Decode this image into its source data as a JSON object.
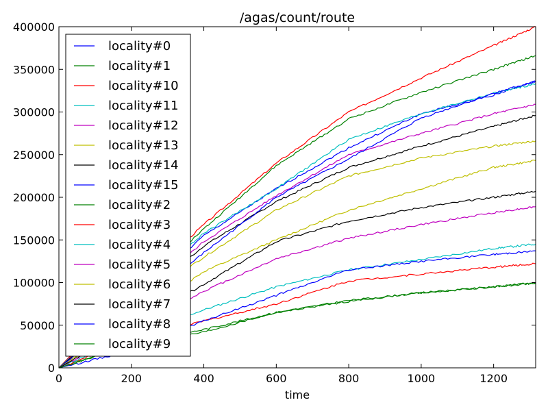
{
  "chart_data": {
    "type": "line",
    "title": "/agas/count/route",
    "xlabel": "time",
    "ylabel": "",
    "xlim": [
      0,
      1316
    ],
    "ylim": [
      0,
      400000
    ],
    "xticks": [
      0,
      200,
      400,
      600,
      800,
      1000,
      1200
    ],
    "yticks": [
      0,
      50000,
      100000,
      150000,
      200000,
      250000,
      300000,
      350000,
      400000
    ],
    "grid": false,
    "legend_position": "upper-left",
    "series": [
      {
        "name": "locality#0",
        "color": "#0000ff",
        "x": [
          0,
          200,
          400,
          600,
          800,
          1000,
          1200,
          1316
        ],
        "y": [
          0,
          78000,
          155000,
          210000,
          258000,
          298000,
          320000,
          336000
        ]
      },
      {
        "name": "locality#1",
        "color": "#008000",
        "x": [
          0,
          200,
          400,
          600,
          800,
          1000,
          1200,
          1316
        ],
        "y": [
          0,
          85000,
          163000,
          237000,
          292000,
          323000,
          350000,
          366000
        ]
      },
      {
        "name": "locality#10",
        "color": "#ff0000",
        "x": [
          0,
          200,
          400,
          600,
          800,
          1000,
          1200,
          1316
        ],
        "y": [
          0,
          90000,
          168000,
          240000,
          300000,
          340000,
          378000,
          400000
        ]
      },
      {
        "name": "locality#11",
        "color": "#00bfbf",
        "x": [
          0,
          200,
          400,
          600,
          800,
          1000,
          1200,
          1316
        ],
        "y": [
          0,
          82000,
          158000,
          210000,
          268000,
          298000,
          322000,
          333000
        ]
      },
      {
        "name": "locality#12",
        "color": "#bf00bf",
        "x": [
          0,
          200,
          400,
          600,
          800,
          1000,
          1200,
          1316
        ],
        "y": [
          0,
          75000,
          148000,
          202000,
          250000,
          275000,
          298000,
          309000
        ]
      },
      {
        "name": "locality#13",
        "color": "#bfbf00",
        "x": [
          0,
          200,
          400,
          600,
          800,
          1000,
          1200,
          1316
        ],
        "y": [
          0,
          70000,
          130000,
          185000,
          225000,
          246000,
          260000,
          266000
        ]
      },
      {
        "name": "locality#14",
        "color": "#000000",
        "x": [
          0,
          200,
          400,
          600,
          800,
          1000,
          1200,
          1316
        ],
        "y": [
          0,
          72000,
          143000,
          195000,
          235000,
          260000,
          283000,
          296000
        ]
      },
      {
        "name": "locality#15",
        "color": "#0000ff",
        "x": [
          0,
          200,
          400,
          600,
          800,
          1000,
          1200,
          1316
        ],
        "y": [
          0,
          65000,
          135000,
          200000,
          245000,
          293000,
          322000,
          336000
        ]
      },
      {
        "name": "locality#2",
        "color": "#008000",
        "x": [
          0,
          200,
          400,
          600,
          800,
          1000,
          1200,
          1316
        ],
        "y": [
          0,
          28000,
          45000,
          65000,
          79000,
          88000,
          95000,
          99000
        ]
      },
      {
        "name": "locality#3",
        "color": "#ff0000",
        "x": [
          0,
          200,
          400,
          600,
          800,
          1000,
          1200,
          1316
        ],
        "y": [
          0,
          32000,
          55000,
          75000,
          102000,
          110000,
          118000,
          122000
        ]
      },
      {
        "name": "locality#4",
        "color": "#00bfbf",
        "x": [
          0,
          200,
          400,
          600,
          800,
          1000,
          1200,
          1316
        ],
        "y": [
          0,
          38000,
          68000,
          95000,
          115000,
          127000,
          140000,
          145000
        ]
      },
      {
        "name": "locality#5",
        "color": "#bf00bf",
        "x": [
          0,
          200,
          400,
          600,
          800,
          1000,
          1200,
          1316
        ],
        "y": [
          0,
          45000,
          90000,
          128000,
          152000,
          168000,
          182000,
          189000
        ]
      },
      {
        "name": "locality#6",
        "color": "#bfbf00",
        "x": [
          0,
          200,
          400,
          600,
          800,
          1000,
          1200,
          1316
        ],
        "y": [
          0,
          55000,
          113000,
          150000,
          185000,
          210000,
          235000,
          243000
        ]
      },
      {
        "name": "locality#7",
        "color": "#000000",
        "x": [
          0,
          200,
          400,
          600,
          800,
          1000,
          1200,
          1316
        ],
        "y": [
          0,
          48000,
          98000,
          148000,
          172000,
          188000,
          200000,
          207000
        ]
      },
      {
        "name": "locality#8",
        "color": "#0000ff",
        "x": [
          0,
          200,
          400,
          600,
          800,
          1000,
          1200,
          1316
        ],
        "y": [
          0,
          20000,
          55000,
          85000,
          115000,
          125000,
          133000,
          137000
        ]
      },
      {
        "name": "locality#9",
        "color": "#008000",
        "x": [
          0,
          200,
          400,
          600,
          800,
          1000,
          1200,
          1316
        ],
        "y": [
          0,
          26000,
          42000,
          65000,
          78000,
          88000,
          95000,
          100000
        ]
      }
    ]
  }
}
